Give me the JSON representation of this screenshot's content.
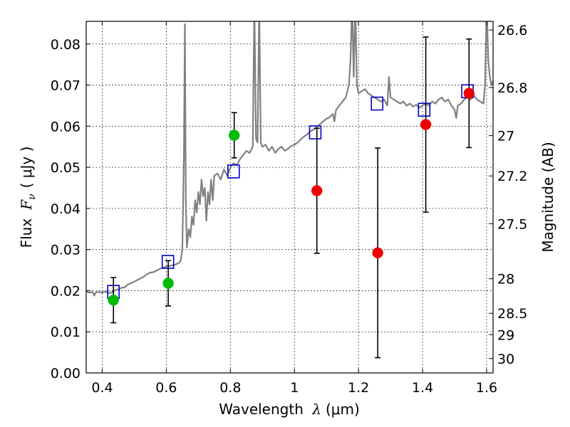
{
  "chart_data": {
    "type": "scatter",
    "xlabel_text": "Wavelength",
    "xlabel_symbol": "λ",
    "xlabel_unit": "(μm)",
    "ylabel_text": "Flux",
    "ylabel_symbol": "F",
    "ylabel_subscript": "ν",
    "ylabel_unit": "( μJy )",
    "y2label": "Magnitude (AB)",
    "xlim": [
      0.35,
      1.62
    ],
    "ylim": [
      0.0,
      0.0855
    ],
    "grid": true,
    "x_ticks": [
      {
        "value": 0.4,
        "label": "0.4"
      },
      {
        "value": 0.6,
        "label": "0.6"
      },
      {
        "value": 0.8,
        "label": "0.8"
      },
      {
        "value": 1.0,
        "label": "1"
      },
      {
        "value": 1.2,
        "label": "1.2"
      },
      {
        "value": 1.4,
        "label": "1.4"
      },
      {
        "value": 1.6,
        "label": "1.6"
      }
    ],
    "y_ticks": [
      {
        "value": 0.0,
        "label": "0.00"
      },
      {
        "value": 0.01,
        "label": "0.01"
      },
      {
        "value": 0.02,
        "label": "0.02"
      },
      {
        "value": 0.03,
        "label": "0.03"
      },
      {
        "value": 0.04,
        "label": "0.04"
      },
      {
        "value": 0.05,
        "label": "0.05"
      },
      {
        "value": 0.06,
        "label": "0.06"
      },
      {
        "value": 0.07,
        "label": "0.07"
      },
      {
        "value": 0.08,
        "label": "0.08"
      }
    ],
    "y2_ticks": [
      {
        "flux": 0.0834,
        "label": "26.6"
      },
      {
        "flux": 0.0694,
        "label": "26.8"
      },
      {
        "flux": 0.0577,
        "label": "27"
      },
      {
        "flux": 0.0479,
        "label": "27.2"
      },
      {
        "flux": 0.0363,
        "label": "27.5"
      },
      {
        "flux": 0.0229,
        "label": "28"
      },
      {
        "flux": 0.0145,
        "label": "28.5"
      },
      {
        "flux": 0.0093,
        "label": "29"
      },
      {
        "flux": 0.0035,
        "label": "30"
      }
    ],
    "colors": {
      "spectrum": "#808080",
      "model_squares": "#0000cc",
      "green_points": "#00bb00",
      "red_points": "#ee0000",
      "errorbars": "#000000"
    },
    "series": [
      {
        "kind": "spectrum",
        "points": [
          [
            0.35,
            0.0198
          ],
          [
            0.36,
            0.0195
          ],
          [
            0.37,
            0.0197
          ],
          [
            0.375,
            0.0188
          ],
          [
            0.38,
            0.0196
          ],
          [
            0.39,
            0.0197
          ],
          [
            0.4,
            0.0195
          ],
          [
            0.41,
            0.0198
          ],
          [
            0.42,
            0.0194
          ],
          [
            0.43,
            0.0196
          ],
          [
            0.44,
            0.0201
          ],
          [
            0.45,
            0.0203
          ],
          [
            0.46,
            0.0207
          ],
          [
            0.47,
            0.0208
          ],
          [
            0.48,
            0.0215
          ],
          [
            0.49,
            0.0218
          ],
          [
            0.5,
            0.0222
          ],
          [
            0.51,
            0.0226
          ],
          [
            0.52,
            0.023
          ],
          [
            0.53,
            0.0234
          ],
          [
            0.54,
            0.024
          ],
          [
            0.55,
            0.0244
          ],
          [
            0.56,
            0.0245
          ],
          [
            0.57,
            0.0249
          ],
          [
            0.58,
            0.0253
          ],
          [
            0.59,
            0.0256
          ],
          [
            0.6,
            0.0259
          ],
          [
            0.61,
            0.026
          ],
          [
            0.62,
            0.0262
          ],
          [
            0.63,
            0.0264
          ],
          [
            0.64,
            0.0268
          ],
          [
            0.645,
            0.0273
          ],
          [
            0.65,
            0.03
          ],
          [
            0.655,
            0.0525
          ],
          [
            0.658,
            0.0848
          ],
          [
            0.661,
            0.042
          ],
          [
            0.664,
            0.0305
          ],
          [
            0.67,
            0.035
          ],
          [
            0.675,
            0.033
          ],
          [
            0.68,
            0.038
          ],
          [
            0.685,
            0.036
          ],
          [
            0.69,
            0.042
          ],
          [
            0.695,
            0.039
          ],
          [
            0.7,
            0.044
          ],
          [
            0.705,
            0.041
          ],
          [
            0.71,
            0.047
          ],
          [
            0.715,
            0.043
          ],
          [
            0.72,
            0.045
          ],
          [
            0.725,
            0.037
          ],
          [
            0.73,
            0.044
          ],
          [
            0.735,
            0.041
          ],
          [
            0.74,
            0.047
          ],
          [
            0.745,
            0.042
          ],
          [
            0.75,
            0.048
          ],
          [
            0.76,
            0.0485
          ],
          [
            0.77,
            0.047
          ],
          [
            0.78,
            0.0495
          ],
          [
            0.79,
            0.048
          ],
          [
            0.8,
            0.05
          ],
          [
            0.81,
            0.051
          ],
          [
            0.82,
            0.0505
          ],
          [
            0.83,
            0.052
          ],
          [
            0.84,
            0.053
          ],
          [
            0.85,
            0.054
          ],
          [
            0.86,
            0.0535
          ],
          [
            0.87,
            0.055
          ],
          [
            0.875,
            0.09
          ],
          [
            0.88,
            0.057
          ],
          [
            0.885,
            0.056
          ],
          [
            0.89,
            0.09
          ],
          [
            0.895,
            0.056
          ],
          [
            0.9,
            0.055
          ],
          [
            0.91,
            0.0555
          ],
          [
            0.92,
            0.054
          ],
          [
            0.93,
            0.055
          ],
          [
            0.94,
            0.0535
          ],
          [
            0.95,
            0.0545
          ],
          [
            0.96,
            0.055
          ],
          [
            0.97,
            0.054
          ],
          [
            0.98,
            0.0545
          ],
          [
            0.99,
            0.0552
          ],
          [
            1.0,
            0.0555
          ],
          [
            1.01,
            0.056
          ],
          [
            1.02,
            0.0568
          ],
          [
            1.03,
            0.0575
          ],
          [
            1.04,
            0.058
          ],
          [
            1.05,
            0.0588
          ],
          [
            1.06,
            0.0592
          ],
          [
            1.07,
            0.0598
          ],
          [
            1.08,
            0.0605
          ],
          [
            1.09,
            0.0612
          ],
          [
            1.1,
            0.0618
          ],
          [
            1.11,
            0.0622
          ],
          [
            1.12,
            0.063
          ],
          [
            1.125,
            0.0612
          ],
          [
            1.13,
            0.064
          ],
          [
            1.14,
            0.065
          ],
          [
            1.15,
            0.066
          ],
          [
            1.16,
            0.067
          ],
          [
            1.17,
            0.07
          ],
          [
            1.175,
            0.076
          ],
          [
            1.18,
            0.09
          ],
          [
            1.185,
            0.072
          ],
          [
            1.19,
            0.09
          ],
          [
            1.195,
            0.07
          ],
          [
            1.2,
            0.068
          ],
          [
            1.21,
            0.0685
          ],
          [
            1.22,
            0.069
          ],
          [
            1.23,
            0.068
          ],
          [
            1.24,
            0.0675
          ],
          [
            1.25,
            0.067
          ],
          [
            1.26,
            0.0665
          ],
          [
            1.27,
            0.066
          ],
          [
            1.28,
            0.0665
          ],
          [
            1.29,
            0.065
          ],
          [
            1.295,
            0.072
          ],
          [
            1.3,
            0.067
          ],
          [
            1.31,
            0.0665
          ],
          [
            1.32,
            0.066
          ],
          [
            1.33,
            0.0655
          ],
          [
            1.34,
            0.066
          ],
          [
            1.35,
            0.065
          ],
          [
            1.36,
            0.0655
          ],
          [
            1.37,
            0.0648
          ],
          [
            1.38,
            0.0652
          ],
          [
            1.39,
            0.0645
          ],
          [
            1.4,
            0.065
          ],
          [
            1.41,
            0.0655
          ],
          [
            1.42,
            0.065
          ],
          [
            1.43,
            0.066
          ],
          [
            1.44,
            0.0655
          ],
          [
            1.45,
            0.0665
          ],
          [
            1.46,
            0.067
          ],
          [
            1.47,
            0.066
          ],
          [
            1.48,
            0.0665
          ],
          [
            1.49,
            0.065
          ],
          [
            1.5,
            0.064
          ],
          [
            1.505,
            0.062
          ],
          [
            1.51,
            0.065
          ],
          [
            1.52,
            0.0655
          ],
          [
            1.53,
            0.0665
          ],
          [
            1.54,
            0.067
          ],
          [
            1.55,
            0.0665
          ],
          [
            1.56,
            0.0675
          ],
          [
            1.57,
            0.0665
          ],
          [
            1.58,
            0.066
          ],
          [
            1.59,
            0.0655
          ],
          [
            1.595,
            0.07
          ],
          [
            1.6,
            0.09
          ],
          [
            1.605,
            0.076
          ],
          [
            1.61,
            0.072
          ],
          [
            1.615,
            0.07
          ],
          [
            1.62,
            0.071
          ]
        ]
      },
      {
        "kind": "model_photometry",
        "points": [
          [
            0.435,
            0.0197
          ],
          [
            0.605,
            0.027
          ],
          [
            0.81,
            0.049
          ],
          [
            1.065,
            0.0585
          ],
          [
            1.258,
            0.0655
          ],
          [
            1.405,
            0.064
          ],
          [
            1.54,
            0.0685
          ]
        ]
      },
      {
        "kind": "observed_green",
        "points": [
          {
            "x": 0.435,
            "y": 0.0177,
            "err": 0.0055
          },
          {
            "x": 0.606,
            "y": 0.0218,
            "err": 0.0055
          },
          {
            "x": 0.812,
            "y": 0.0578,
            "err": 0.0055
          }
        ]
      },
      {
        "kind": "observed_red",
        "points": [
          {
            "x": 1.07,
            "y": 0.0443,
            "err": 0.0152
          },
          {
            "x": 1.26,
            "y": 0.0292,
            "err": 0.0255
          },
          {
            "x": 1.41,
            "y": 0.0604,
            "err": 0.0213
          },
          {
            "x": 1.545,
            "y": 0.068,
            "err": 0.0132
          }
        ]
      }
    ]
  }
}
